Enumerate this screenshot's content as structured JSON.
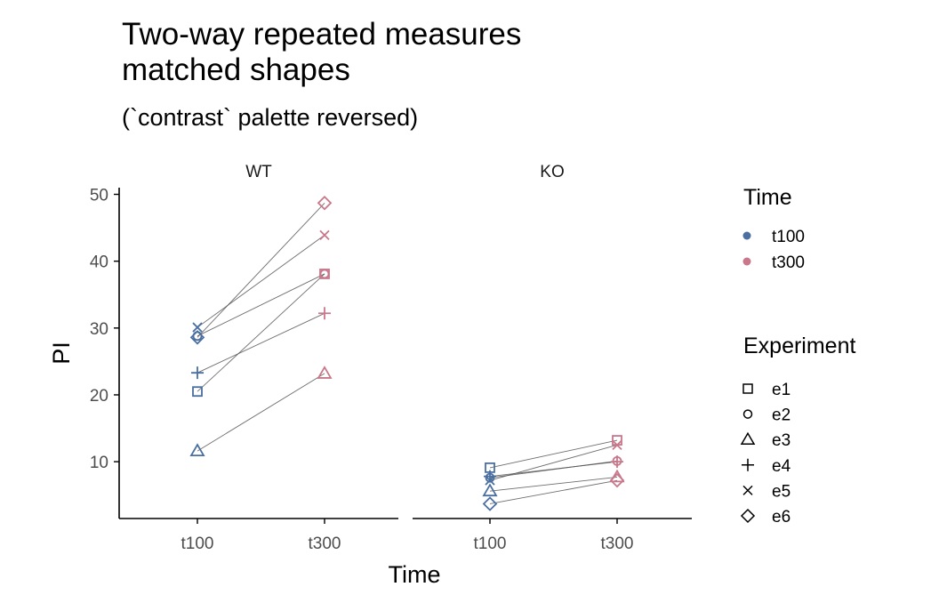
{
  "chart_data": {
    "type": "line",
    "title": "Two-way repeated measures",
    "title_line2": "matched shapes",
    "subtitle": "(`contrast` palette reversed)",
    "xlabel": "Time",
    "ylabel": "PI",
    "ylim": [
      1.5,
      51
    ],
    "yticks": [
      "10",
      "20",
      "30",
      "40",
      "50"
    ],
    "xticks": [
      "t100",
      "t300"
    ],
    "grid": false,
    "colors": {
      "t100": "#4a6fa0",
      "t300": "#c9778a",
      "line": "#555555",
      "axis": "#000000"
    },
    "panels": [
      {
        "name": "WT",
        "series": [
          {
            "name": "e1",
            "shape": "square",
            "t100": 20.5,
            "t300": 38.1
          },
          {
            "name": "e2",
            "shape": "circle",
            "t100": 28.8,
            "t300": 38.1
          },
          {
            "name": "e3",
            "shape": "triangle",
            "t100": 11.6,
            "t300": 23.2
          },
          {
            "name": "e4",
            "shape": "plus",
            "t100": 23.3,
            "t300": 32.2
          },
          {
            "name": "e5",
            "shape": "cross",
            "t100": 30.1,
            "t300": 43.9
          },
          {
            "name": "e6",
            "shape": "diamond",
            "t100": 28.6,
            "t300": 48.7
          }
        ]
      },
      {
        "name": "KO",
        "series": [
          {
            "name": "e1",
            "shape": "square",
            "t100": 9.1,
            "t300": 13.2
          },
          {
            "name": "e2",
            "shape": "circle",
            "t100": 7.6,
            "t300": 10.1
          },
          {
            "name": "e3",
            "shape": "triangle",
            "t100": 5.6,
            "t300": 7.7
          },
          {
            "name": "e4",
            "shape": "plus",
            "t100": 7.8,
            "t300": 10.0
          },
          {
            "name": "e5",
            "shape": "cross",
            "t100": 7.2,
            "t300": 12.5
          },
          {
            "name": "e6",
            "shape": "diamond",
            "t100": 3.7,
            "t300": 7.2
          }
        ]
      }
    ],
    "legend": {
      "position": "right",
      "time_title": "Time",
      "time_items": [
        {
          "label": "t100",
          "key": "t100"
        },
        {
          "label": "t300",
          "key": "t300"
        }
      ],
      "experiment_title": "Experiment",
      "experiment_items": [
        {
          "label": "e1",
          "shape": "square"
        },
        {
          "label": "e2",
          "shape": "circle"
        },
        {
          "label": "e3",
          "shape": "triangle"
        },
        {
          "label": "e4",
          "shape": "plus"
        },
        {
          "label": "e5",
          "shape": "cross"
        },
        {
          "label": "e6",
          "shape": "diamond"
        }
      ]
    }
  }
}
